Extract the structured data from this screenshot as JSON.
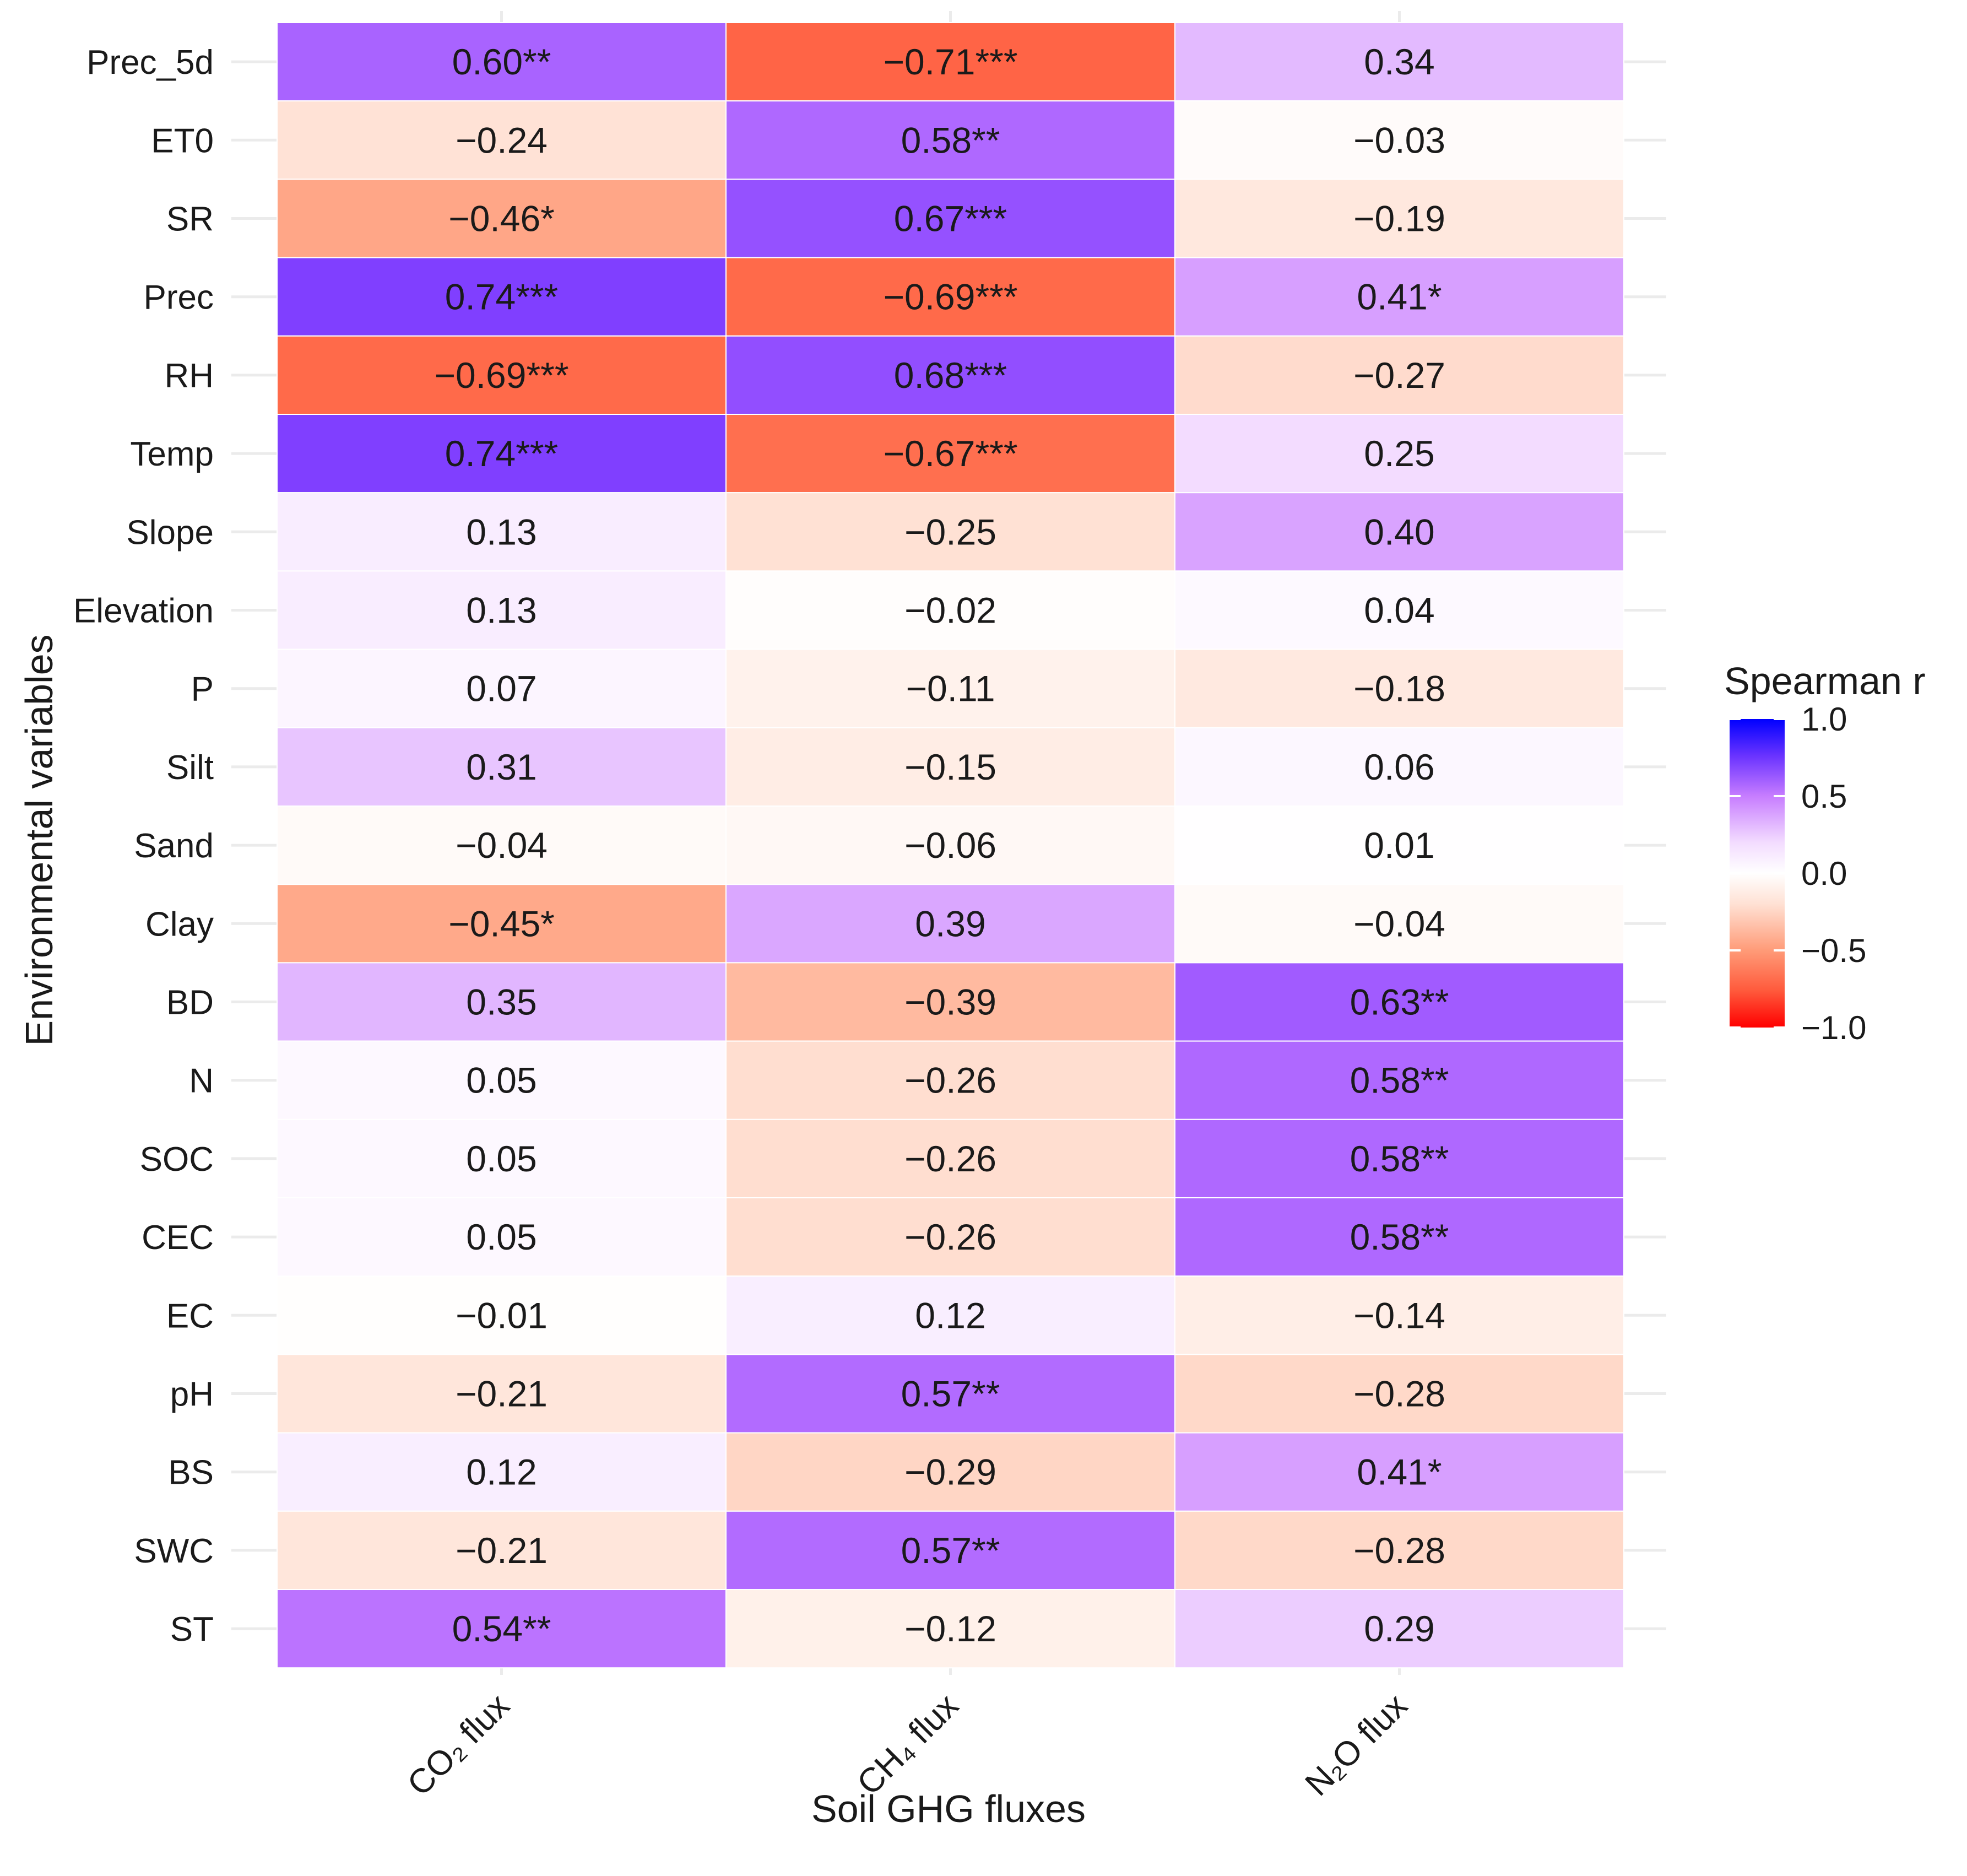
{
  "chart_data": {
    "type": "heatmap",
    "title": "",
    "xlabel": "Soil GHG fluxes",
    "ylabel": "Environmental variables",
    "columns": [
      "CO₂ flux",
      "CH₄ flux",
      "N₂O flux"
    ],
    "rows": [
      "Prec_5d",
      "ET0",
      "SR",
      "Prec",
      "RH",
      "Temp",
      "Slope",
      "Elevation",
      "P",
      "Silt",
      "Sand",
      "Clay",
      "BD",
      "N",
      "SOC",
      "CEC",
      "EC",
      "pH",
      "BS",
      "SWC",
      "ST"
    ],
    "values": [
      [
        0.6,
        -0.71,
        0.34
      ],
      [
        -0.24,
        0.58,
        -0.03
      ],
      [
        -0.46,
        0.67,
        -0.19
      ],
      [
        0.74,
        -0.69,
        0.41
      ],
      [
        -0.69,
        0.68,
        -0.27
      ],
      [
        0.74,
        -0.67,
        0.25
      ],
      [
        0.13,
        -0.25,
        0.4
      ],
      [
        0.13,
        -0.02,
        0.04
      ],
      [
        0.07,
        -0.11,
        -0.18
      ],
      [
        0.31,
        -0.15,
        0.06
      ],
      [
        -0.04,
        -0.06,
        0.01
      ],
      [
        -0.45,
        0.39,
        -0.04
      ],
      [
        0.35,
        -0.39,
        0.63
      ],
      [
        0.05,
        -0.26,
        0.58
      ],
      [
        0.05,
        -0.26,
        0.58
      ],
      [
        0.05,
        -0.26,
        0.58
      ],
      [
        -0.01,
        0.12,
        -0.14
      ],
      [
        -0.21,
        0.57,
        -0.28
      ],
      [
        0.12,
        -0.29,
        0.41
      ],
      [
        -0.21,
        0.57,
        -0.28
      ],
      [
        0.54,
        -0.12,
        0.29
      ]
    ],
    "labels": [
      [
        "0.60**",
        "−0.71***",
        "0.34"
      ],
      [
        "−0.24",
        "0.58**",
        "−0.03"
      ],
      [
        "−0.46*",
        "0.67***",
        "−0.19"
      ],
      [
        "0.74***",
        "−0.69***",
        "0.41*"
      ],
      [
        "−0.69***",
        "0.68***",
        "−0.27"
      ],
      [
        "0.74***",
        "−0.67***",
        "0.25"
      ],
      [
        "0.13",
        "−0.25",
        "0.40"
      ],
      [
        "0.13",
        "−0.02",
        "0.04"
      ],
      [
        "0.07",
        "−0.11",
        "−0.18"
      ],
      [
        "0.31",
        "−0.15",
        "0.06"
      ],
      [
        "−0.04",
        "−0.06",
        "0.01"
      ],
      [
        "−0.45*",
        "0.39",
        "−0.04"
      ],
      [
        "0.35",
        "−0.39",
        "0.63**"
      ],
      [
        "0.05",
        "−0.26",
        "0.58**"
      ],
      [
        "0.05",
        "−0.26",
        "0.58**"
      ],
      [
        "0.05",
        "−0.26",
        "0.58**"
      ],
      [
        "−0.01",
        "0.12",
        "−0.14"
      ],
      [
        "−0.21",
        "0.57**",
        "−0.28"
      ],
      [
        "0.12",
        "−0.29",
        "0.41*"
      ],
      [
        "−0.21",
        "0.57**",
        "−0.28"
      ],
      [
        "0.54**",
        "−0.12",
        "0.29"
      ]
    ],
    "legend": {
      "title": "Spearman r",
      "position": "right",
      "range": [
        -1.0,
        1.0
      ],
      "ticks": [
        1.0,
        0.5,
        0.0,
        -0.5,
        -1.0
      ],
      "tick_labels": [
        "1.0",
        "0.5",
        "0.0",
        "−0.5",
        "−1.0"
      ]
    },
    "colors": {
      "low": "#ff0000",
      "mid": "#ffffff",
      "high": "#0000ff",
      "positive_ramp": [
        "#ffffff",
        "#f3dcff",
        "#c77dff",
        "#7d3cff",
        "#0000ff"
      ],
      "negative_ramp": [
        "#ffffff",
        "#ffe1d4",
        "#ff9b78",
        "#ff5a3c",
        "#ff0000"
      ],
      "grid": "#ebebeb",
      "text": "#1a1a1a"
    }
  }
}
